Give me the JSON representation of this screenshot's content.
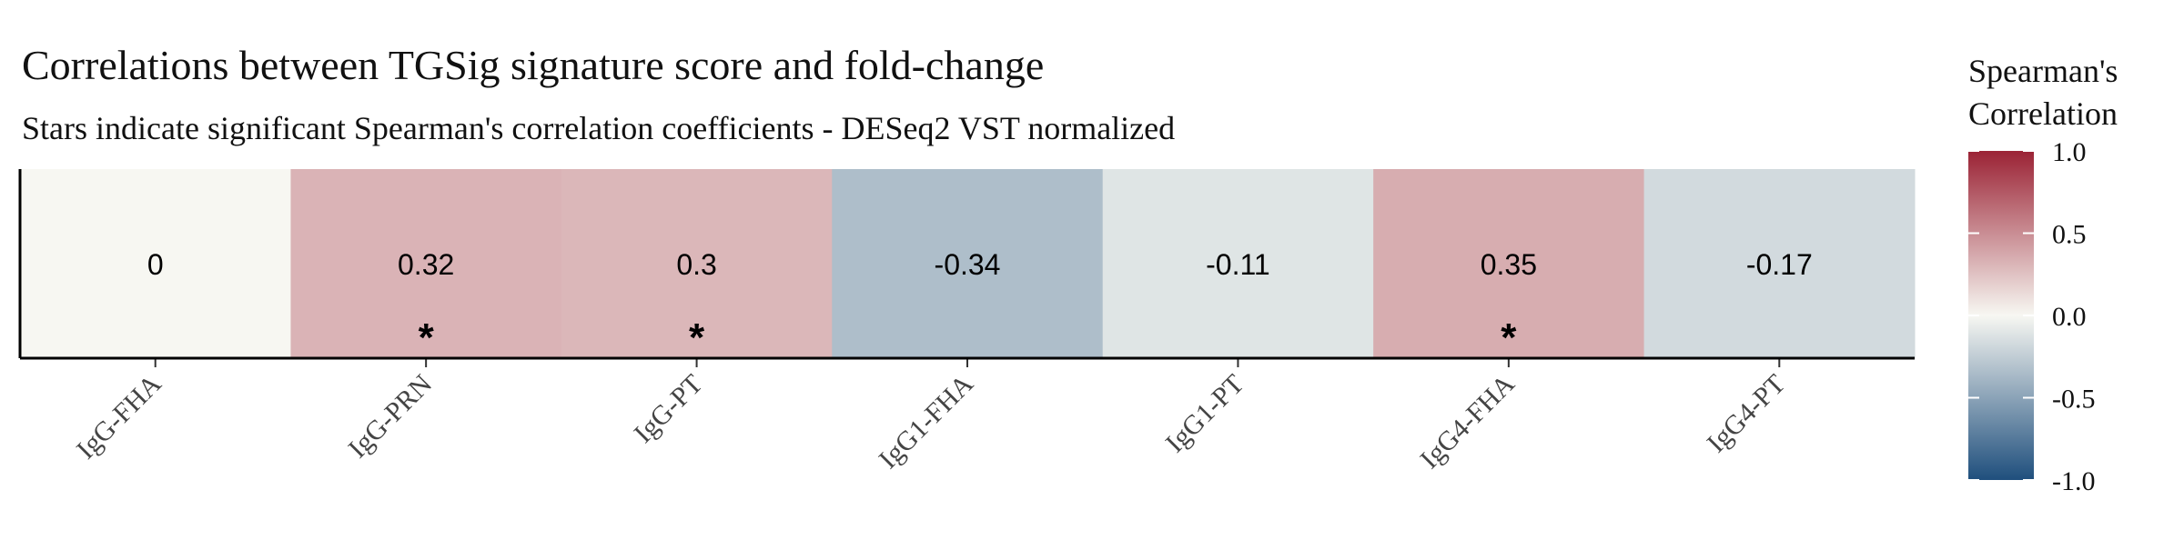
{
  "chart_data": {
    "type": "heatmap",
    "title": "Correlations between TGSig signature score and fold-change",
    "subtitle": "Stars indicate significant Spearman's correlation coefficients - DESeq2 VST normalized",
    "categories": [
      "IgG-FHA",
      "IgG-PRN",
      "IgG-PT",
      "IgG1-FHA",
      "IgG1-PT",
      "IgG4-FHA",
      "IgG4-PT"
    ],
    "values": [
      0,
      0.32,
      0.3,
      -0.34,
      -0.11,
      0.35,
      -0.17
    ],
    "value_labels": [
      "0",
      "0.32",
      "0.3",
      "-0.34",
      "-0.11",
      "0.35",
      "-0.17"
    ],
    "significant": [
      false,
      true,
      true,
      false,
      false,
      true,
      false
    ],
    "significance_marker": "*",
    "legend": {
      "title_lines": [
        "Spearman's",
        "Correlation"
      ],
      "range": [
        -1.0,
        1.0
      ],
      "ticks": [
        1.0,
        0.5,
        0.0,
        -0.5,
        -1.0
      ],
      "tick_labels": [
        "1.0",
        "0.5",
        "0.0",
        "-0.5",
        "-1.0"
      ],
      "placement": "right"
    },
    "colors": {
      "high": "#9b2335",
      "mid": "#f7f7f2",
      "low": "#1f4f7d"
    }
  }
}
